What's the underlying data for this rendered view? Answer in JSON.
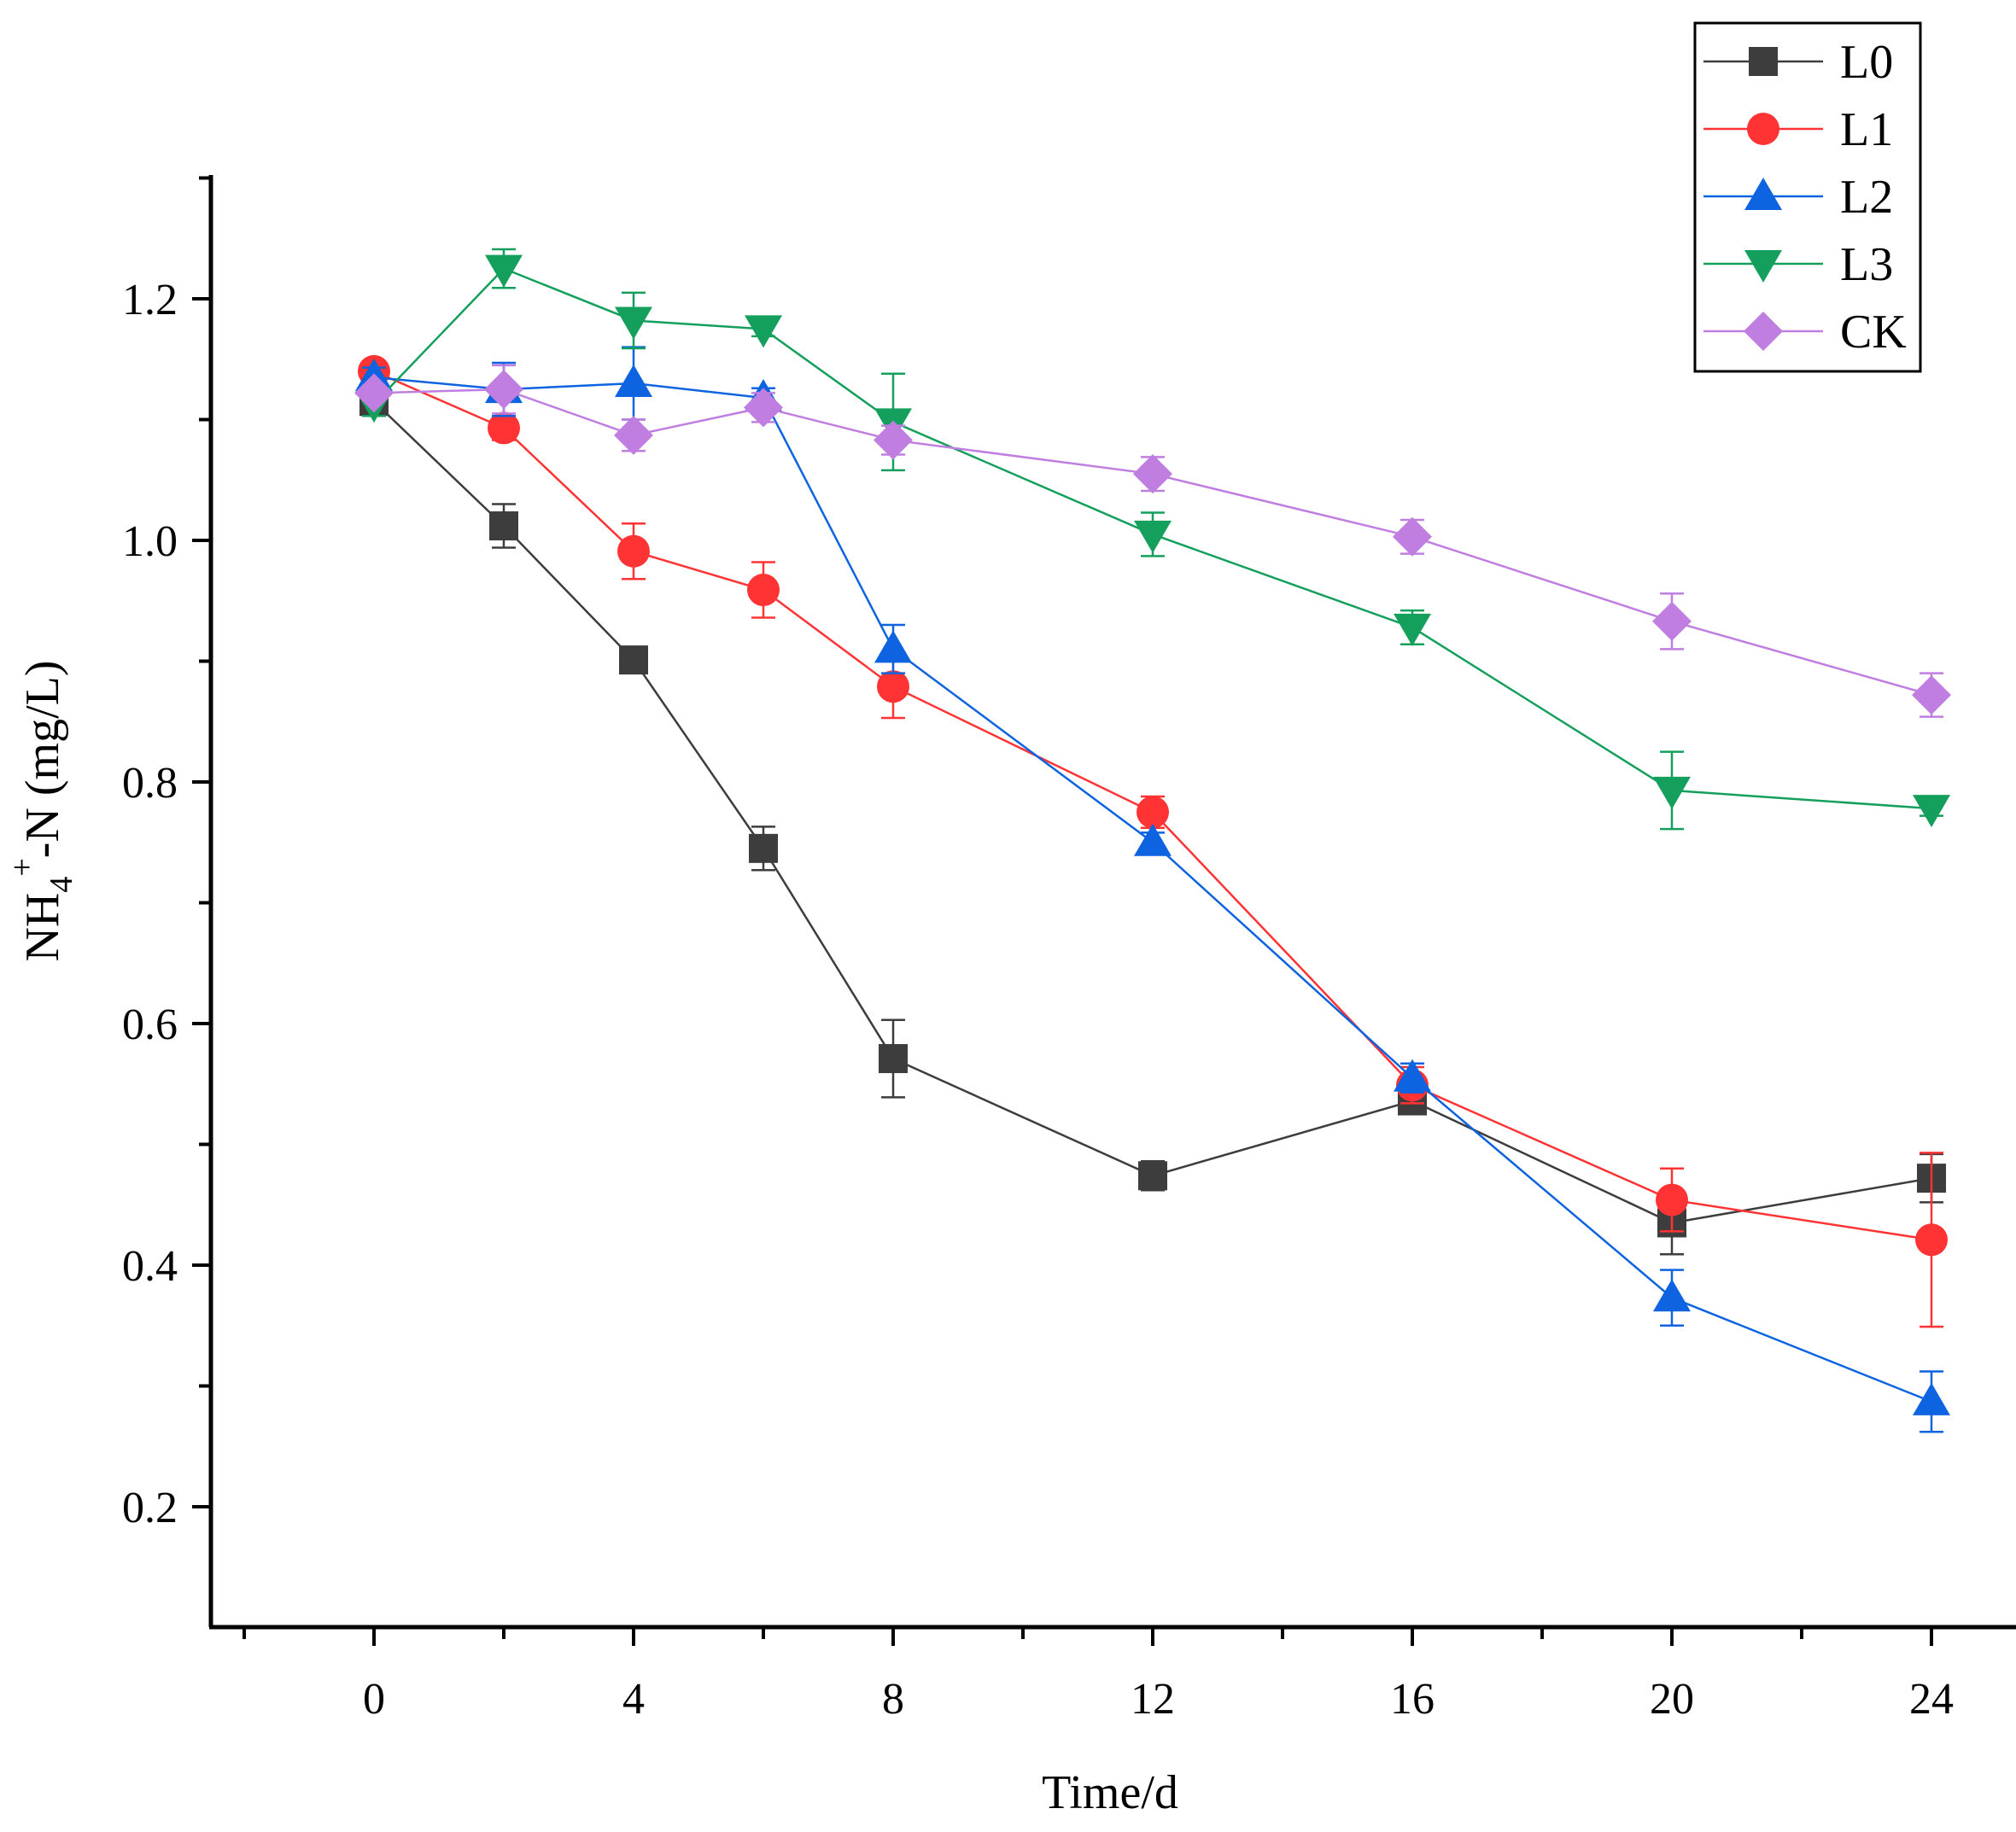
{
  "chart_data": {
    "type": "line",
    "title": "",
    "xlabel": "Time/d",
    "ylabel_parts": {
      "base": "NH",
      "sub": "4",
      "sup": "+",
      "rest": "-N (mg/L)"
    },
    "xlim": [
      -2.5,
      25.2
    ],
    "ylim": [
      0.1,
      1.3
    ],
    "x_ticks": [
      "0",
      "4",
      "8",
      "12",
      "16",
      "20",
      "24"
    ],
    "x_tick_values": [
      0,
      4,
      8,
      12,
      16,
      20,
      24
    ],
    "y_ticks": [
      "0.2",
      "0.4",
      "0.6",
      "0.8",
      "1.0",
      "1.2"
    ],
    "y_tick_values": [
      0.2,
      0.4,
      0.6,
      0.8,
      1.0,
      1.2
    ],
    "legend_position": "top-right",
    "series": [
      {
        "name": "L0",
        "marker": "square",
        "color": "#3d3d3d",
        "x": [
          0,
          2,
          4,
          6,
          8,
          12,
          16,
          20,
          24
        ],
        "y": [
          1.115,
          1.012,
          0.901,
          0.745,
          0.571,
          0.474,
          0.536,
          0.435,
          0.472
        ],
        "err": [
          0.01,
          0.018,
          0.01,
          0.018,
          0.032,
          0.012,
          0.01,
          0.026,
          0.02
        ]
      },
      {
        "name": "L1",
        "marker": "circle",
        "color": "#ff3333",
        "x": [
          0,
          2,
          4,
          6,
          8,
          12,
          16,
          20,
          24
        ],
        "y": [
          1.14,
          1.093,
          0.991,
          0.959,
          0.879,
          0.775,
          0.549,
          0.454,
          0.421
        ],
        "err": [
          0.008,
          0.01,
          0.023,
          0.023,
          0.026,
          0.013,
          0.015,
          0.026,
          0.072
        ]
      },
      {
        "name": "L2",
        "marker": "triangle-up",
        "color": "#0d63e0",
        "x": [
          0,
          2,
          4,
          6,
          8,
          12,
          16,
          20,
          24
        ],
        "y": [
          1.135,
          1.125,
          1.13,
          1.118,
          0.91,
          0.75,
          0.555,
          0.373,
          0.287
        ],
        "err": [
          0.008,
          0.022,
          0.03,
          0.008,
          0.02,
          0.008,
          0.012,
          0.023,
          0.025
        ]
      },
      {
        "name": "L3",
        "marker": "triangle-down",
        "color": "#14a05c",
        "x": [
          0,
          2,
          4,
          6,
          8,
          12,
          16,
          20,
          24
        ],
        "y": [
          1.113,
          1.225,
          1.182,
          1.175,
          1.098,
          1.005,
          0.928,
          0.793,
          0.778
        ],
        "err": [
          0.01,
          0.016,
          0.023,
          0.006,
          0.04,
          0.018,
          0.014,
          0.032,
          0.006
        ]
      },
      {
        "name": "CK",
        "marker": "diamond",
        "color": "#c07ee0",
        "x": [
          0,
          2,
          4,
          6,
          8,
          12,
          16,
          20,
          24
        ],
        "y": [
          1.122,
          1.125,
          1.087,
          1.11,
          1.083,
          1.055,
          1.003,
          0.933,
          0.872
        ],
        "err": [
          0.006,
          0.02,
          0.013,
          0.012,
          0.012,
          0.014,
          0.014,
          0.023,
          0.018
        ]
      }
    ]
  }
}
